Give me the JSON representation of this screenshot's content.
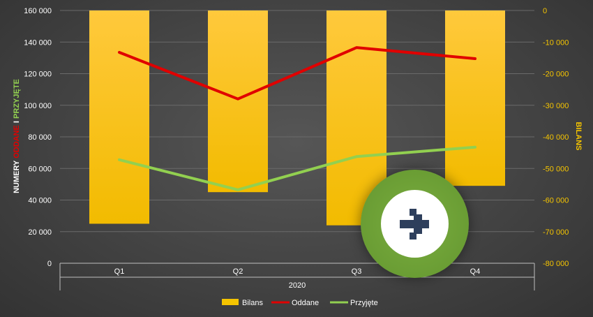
{
  "chart_data": {
    "type": "bar+line",
    "categories": [
      "Q1",
      "Q2",
      "Q3",
      "Q4"
    ],
    "group_label": "2020",
    "bar_series": {
      "name": "Bilans",
      "axis": "right",
      "values": [
        -67500,
        -57500,
        -68000,
        -55500
      ],
      "color": "#f5c400"
    },
    "line_series": [
      {
        "name": "Oddane",
        "axis": "left",
        "values": [
          133500,
          104000,
          136500,
          129500
        ],
        "color": "#e00000"
      },
      {
        "name": "Przyjęte",
        "axis": "left",
        "values": [
          65500,
          46500,
          67500,
          73500
        ],
        "color": "#92d050"
      }
    ],
    "left_axis": {
      "range": [
        0,
        160000
      ],
      "step": 20000,
      "tick_labels": [
        "0",
        "20 000",
        "40 000",
        "60 000",
        "80 000",
        "100 000",
        "120 000",
        "140 000",
        "160 000"
      ],
      "title_parts": [
        {
          "text": "NUMERY ",
          "color": "#ffffff"
        },
        {
          "text": "ODDANE",
          "color": "#e00000"
        },
        {
          "text": " I ",
          "color": "#ffffff"
        },
        {
          "text": "PRZYJĘTE",
          "color": "#92d050"
        }
      ]
    },
    "right_axis": {
      "range": [
        -80000,
        0
      ],
      "step": 10000,
      "tick_labels": [
        "-80 000",
        "-70 000",
        "-60 000",
        "-50 000",
        "-40 000",
        "-30 000",
        "-20 000",
        "-10 000",
        "0"
      ],
      "title": "BILANS",
      "color": "#f5c400"
    },
    "grid": true,
    "legend": {
      "position": "bottom",
      "entries": [
        {
          "name": "Bilans",
          "kind": "bar",
          "color": "#f5c400"
        },
        {
          "name": "Oddane",
          "kind": "line",
          "color": "#e00000"
        },
        {
          "name": "Przyjęte",
          "kind": "line",
          "color": "#92d050"
        }
      ]
    }
  },
  "badge": {
    "icon": "arrow-right-icon",
    "ring_color": "#6fa33a",
    "icon_color": "#2e3f5c"
  }
}
